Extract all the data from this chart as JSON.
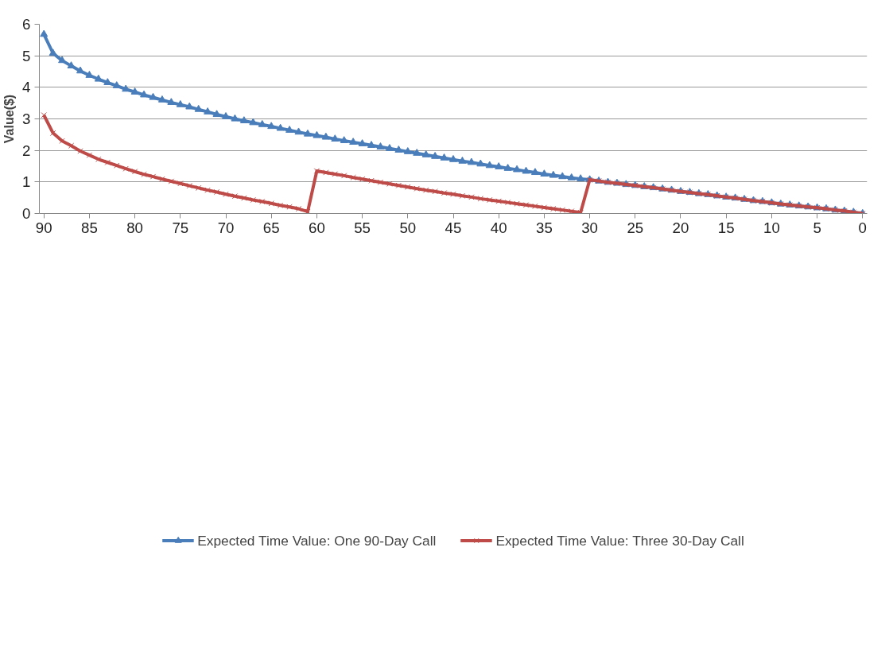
{
  "chart_data": {
    "type": "line",
    "ylabel": "Value($)",
    "x": [
      90,
      89,
      88,
      87,
      86,
      85,
      84,
      83,
      82,
      81,
      80,
      79,
      78,
      77,
      76,
      75,
      74,
      73,
      72,
      71,
      70,
      69,
      68,
      67,
      66,
      65,
      64,
      63,
      62,
      61,
      60,
      59,
      58,
      57,
      56,
      55,
      54,
      53,
      52,
      51,
      50,
      49,
      48,
      47,
      46,
      45,
      44,
      43,
      42,
      41,
      40,
      39,
      38,
      37,
      36,
      35,
      34,
      33,
      32,
      31,
      30,
      29,
      28,
      27,
      26,
      25,
      24,
      23,
      22,
      21,
      20,
      19,
      18,
      17,
      16,
      15,
      14,
      13,
      12,
      11,
      10,
      9,
      8,
      7,
      6,
      5,
      4,
      3,
      2,
      1,
      0
    ],
    "series": [
      {
        "name": "Expected Time Value: One 90-Day Call",
        "color": "#4a7ebb",
        "marker": "triangle",
        "values": [
          5.68,
          5.08,
          4.85,
          4.68,
          4.52,
          4.38,
          4.26,
          4.15,
          4.05,
          3.94,
          3.85,
          3.76,
          3.68,
          3.6,
          3.52,
          3.45,
          3.38,
          3.3,
          3.22,
          3.14,
          3.07,
          3.0,
          2.94,
          2.88,
          2.82,
          2.76,
          2.7,
          2.64,
          2.58,
          2.52,
          2.47,
          2.42,
          2.36,
          2.31,
          2.26,
          2.21,
          2.16,
          2.11,
          2.06,
          2.01,
          1.96,
          1.91,
          1.86,
          1.81,
          1.76,
          1.71,
          1.66,
          1.62,
          1.57,
          1.52,
          1.48,
          1.43,
          1.39,
          1.34,
          1.3,
          1.25,
          1.21,
          1.17,
          1.13,
          1.1,
          1.07,
          1.03,
          0.99,
          0.96,
          0.92,
          0.89,
          0.85,
          0.82,
          0.78,
          0.74,
          0.7,
          0.67,
          0.63,
          0.6,
          0.56,
          0.52,
          0.49,
          0.45,
          0.41,
          0.38,
          0.34,
          0.3,
          0.27,
          0.24,
          0.21,
          0.18,
          0.15,
          0.11,
          0.08,
          0.04,
          0.0
        ]
      },
      {
        "name": "Expected Time Value: Three 30-Day Call",
        "color": "#be4b48",
        "marker": "cross",
        "values": [
          3.12,
          2.55,
          2.3,
          2.15,
          1.98,
          1.85,
          1.72,
          1.62,
          1.52,
          1.42,
          1.33,
          1.24,
          1.17,
          1.09,
          1.02,
          0.95,
          0.88,
          0.81,
          0.74,
          0.68,
          0.61,
          0.55,
          0.49,
          0.43,
          0.38,
          0.32,
          0.26,
          0.21,
          0.15,
          0.06,
          1.35,
          1.3,
          1.25,
          1.2,
          1.14,
          1.09,
          1.04,
          0.99,
          0.94,
          0.89,
          0.84,
          0.79,
          0.74,
          0.7,
          0.65,
          0.61,
          0.56,
          0.52,
          0.47,
          0.43,
          0.39,
          0.35,
          0.31,
          0.27,
          0.23,
          0.19,
          0.15,
          0.11,
          0.07,
          0.03,
          1.07,
          1.03,
          0.99,
          0.96,
          0.92,
          0.89,
          0.85,
          0.82,
          0.78,
          0.74,
          0.7,
          0.67,
          0.63,
          0.6,
          0.56,
          0.52,
          0.49,
          0.45,
          0.41,
          0.38,
          0.34,
          0.3,
          0.27,
          0.24,
          0.21,
          0.18,
          0.15,
          0.11,
          0.08,
          0.04,
          0.0
        ]
      }
    ],
    "xlim": [
      90.5,
      -0.5
    ],
    "xticks": [
      90,
      85,
      80,
      75,
      70,
      65,
      60,
      55,
      50,
      45,
      40,
      35,
      30,
      25,
      20,
      15,
      10,
      5,
      0
    ],
    "ylim": [
      0,
      6
    ],
    "yticks": [
      0,
      1,
      2,
      3,
      4,
      5,
      6
    ],
    "grid": "y",
    "legend": "bottom",
    "line_style": "solid"
  }
}
